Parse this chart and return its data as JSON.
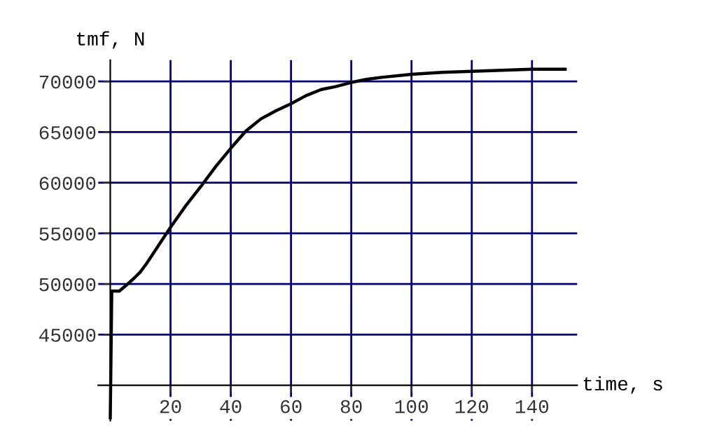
{
  "chart_data": {
    "type": "line",
    "xlabel": "time, s",
    "ylabel": "tmf, N",
    "x": [
      0,
      0.5,
      3,
      5,
      8,
      10,
      12,
      16,
      20,
      25,
      30,
      35,
      40,
      45,
      50,
      55,
      60,
      65,
      70,
      75,
      80,
      85,
      90,
      100,
      110,
      120,
      130,
      140,
      151
    ],
    "series": [
      {
        "color": "#000000",
        "values": [
          36800,
          49300,
          49300,
          49800,
          50600,
          51200,
          52000,
          53800,
          55600,
          57700,
          59600,
          61600,
          63400,
          65100,
          66300,
          67100,
          67800,
          68600,
          69200,
          69500,
          69900,
          70200,
          70400,
          70700,
          70900,
          71000,
          71100,
          71200,
          71200
        ]
      }
    ],
    "xlim": [
      -4,
      155
    ],
    "ylim": [
      36500,
      72100
    ],
    "xticks": [
      20,
      40,
      60,
      80,
      100,
      120,
      140
    ],
    "yticks": [
      45000,
      50000,
      55000,
      60000,
      65000,
      70000
    ],
    "grid": true
  }
}
